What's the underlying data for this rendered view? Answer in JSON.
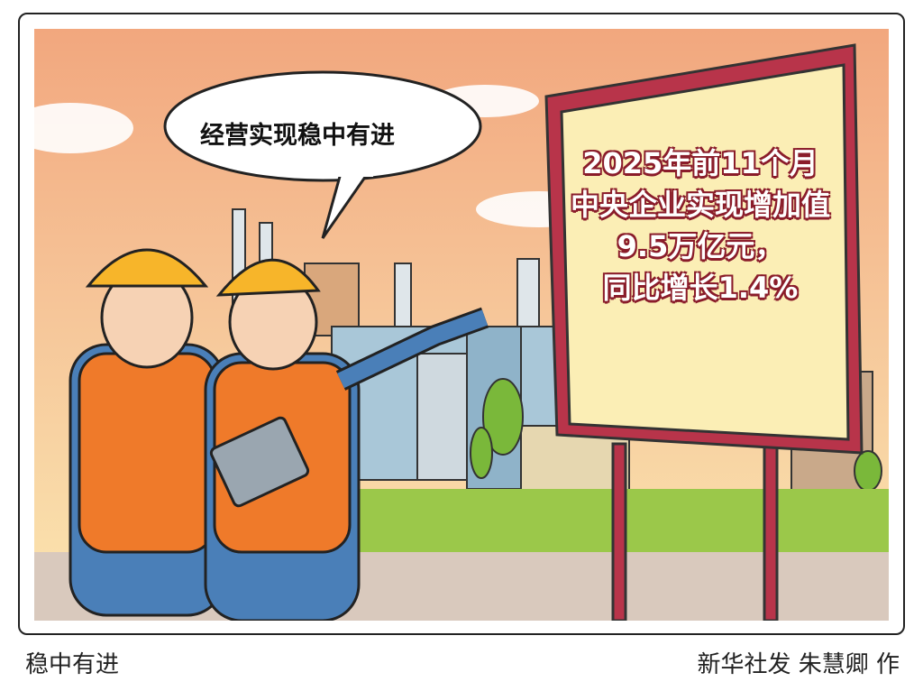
{
  "speech_bubble": {
    "text": "经营实现稳中有进"
  },
  "billboard": {
    "lines": [
      "2025年前11个月",
      "中央企业实现增加值",
      "9.5万亿元，",
      "同比增长1.4%"
    ]
  },
  "captions": {
    "title": "稳中有进",
    "credit": "新华社发 朱慧卿 作"
  },
  "colors": {
    "sky_top": "#f2a77e",
    "sky_bottom": "#fbe6b0",
    "board_frame": "#b8344a",
    "board_face": "#fbeeb5",
    "helmet": "#f7b52a",
    "vest": "#ef7a2a",
    "grass": "#9bc84a"
  }
}
